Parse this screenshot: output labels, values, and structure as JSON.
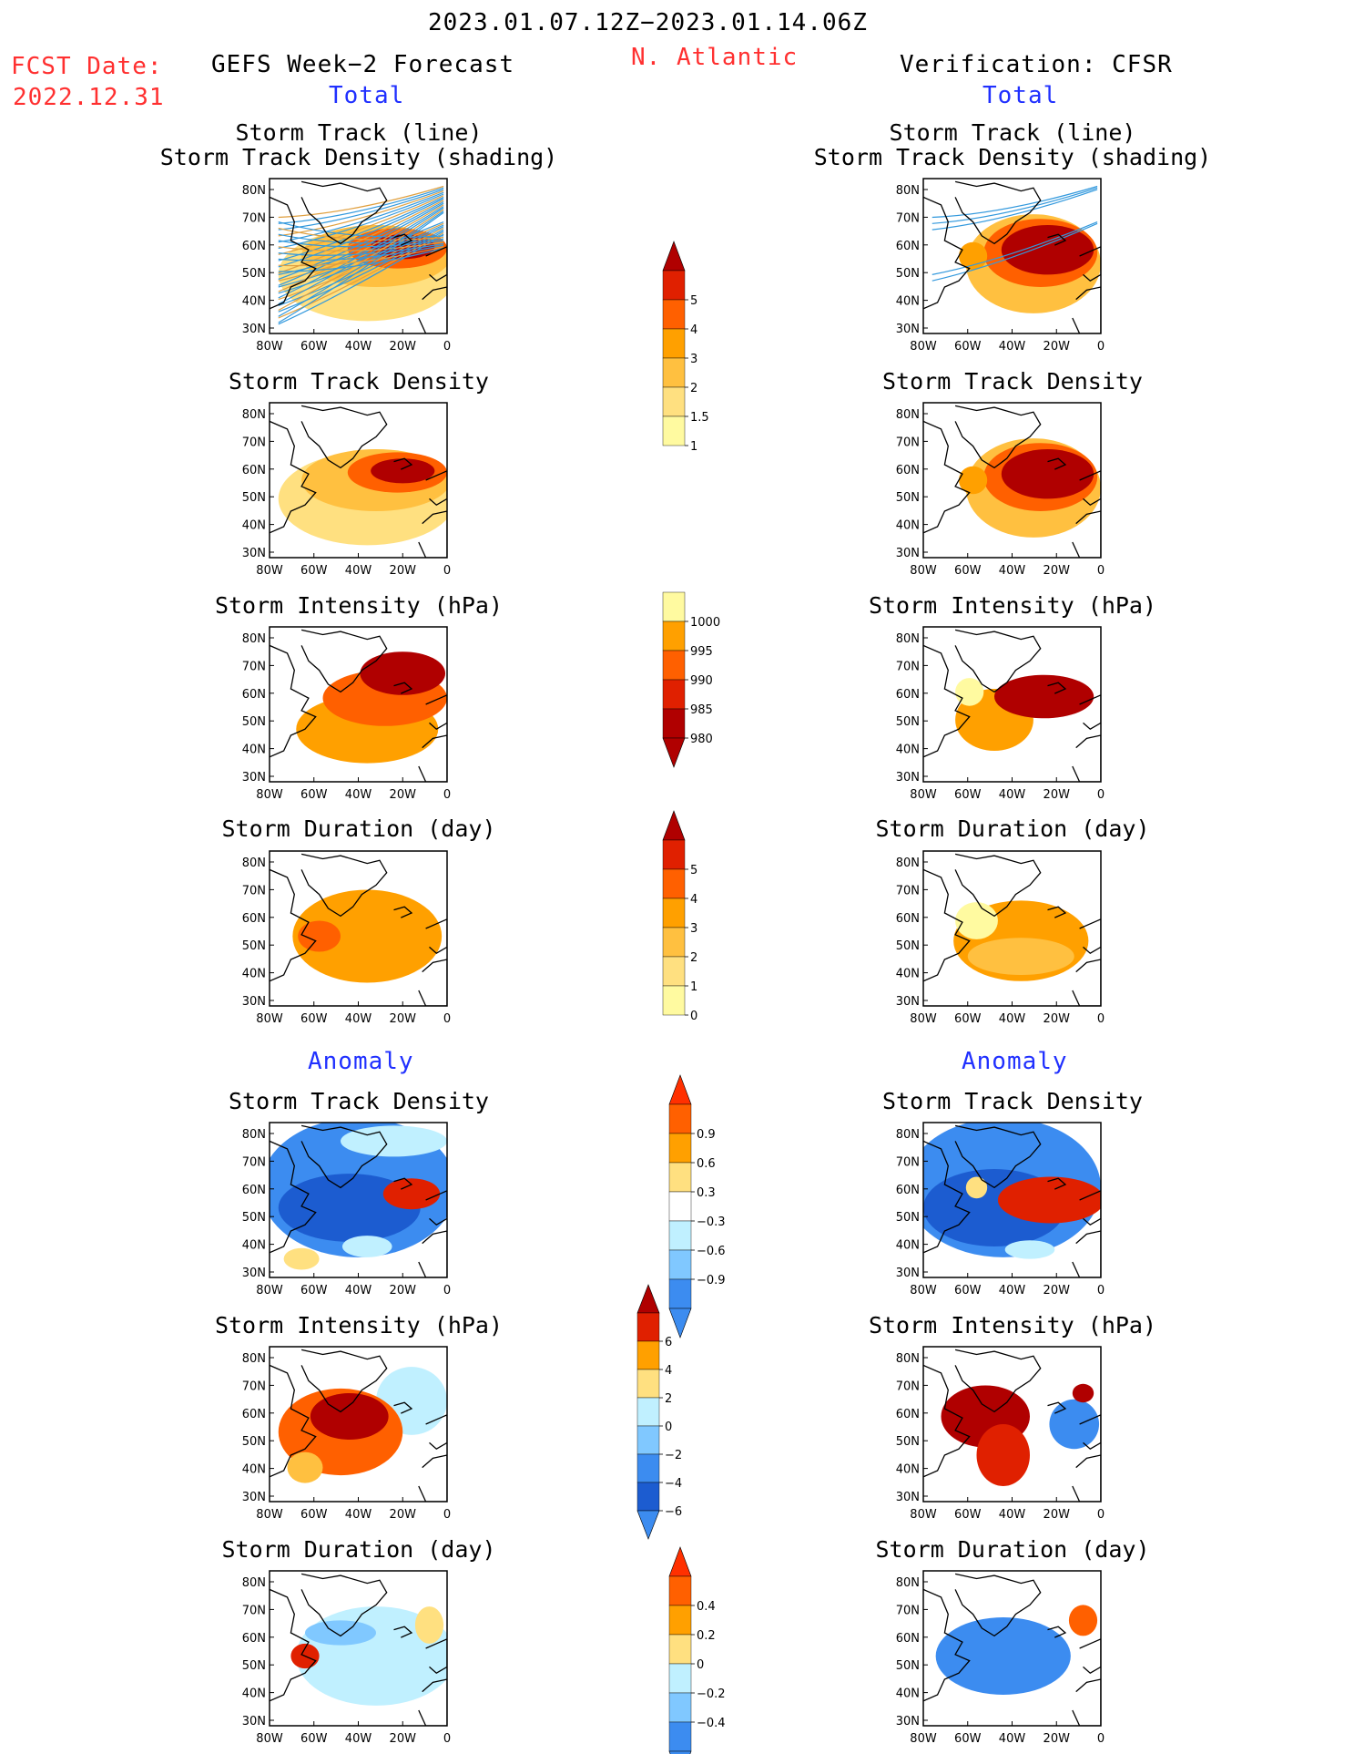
{
  "header": {
    "period": "2023.01.07.12Z−2023.01.14.06Z",
    "region": "N. Atlantic",
    "fcst_label": "FCST Date:",
    "fcst_date": "2022.12.31",
    "left_title": "GEFS Week−2 Forecast",
    "right_title": "Verification: CFSR",
    "left_total": "Total",
    "right_total": "Total",
    "left_anomaly": "Anomaly",
    "right_anomaly": "Anomaly"
  },
  "panels": {
    "track_title_1": "Storm Track (line)",
    "track_title_2": "Storm Track Density (shading)",
    "density": "Storm Track Density",
    "intensity": "Storm Intensity (hPa)",
    "duration": "Storm Duration (day)"
  },
  "axes": {
    "lat_labels": [
      "80N",
      "70N",
      "60N",
      "50N",
      "40N",
      "30N"
    ],
    "lon_labels": [
      "80W",
      "60W",
      "40W",
      "20W",
      "0"
    ]
  },
  "colorbars": {
    "density_total": [
      "5",
      "4",
      "3",
      "2",
      "1.5",
      "1"
    ],
    "intensity_total": [
      "1000",
      "995",
      "990",
      "985",
      "980"
    ],
    "duration_total": [
      "5",
      "4",
      "3",
      "2",
      "1",
      "0"
    ],
    "density_anom": [
      "0.9",
      "0.6",
      "0.3",
      "−0.3",
      "−0.6",
      "−0.9"
    ],
    "intensity_anom": [
      "6",
      "4",
      "2",
      "0",
      "−2",
      "−4",
      "−6"
    ],
    "duration_anom": [
      "0.4",
      "0.2",
      "0",
      "−0.2",
      "−0.4"
    ]
  },
  "colors": {
    "header_red": "#ff3030",
    "header_blue": "#2030ff",
    "track_line": "#3399dd",
    "track_ens": "#e0a040"
  }
}
